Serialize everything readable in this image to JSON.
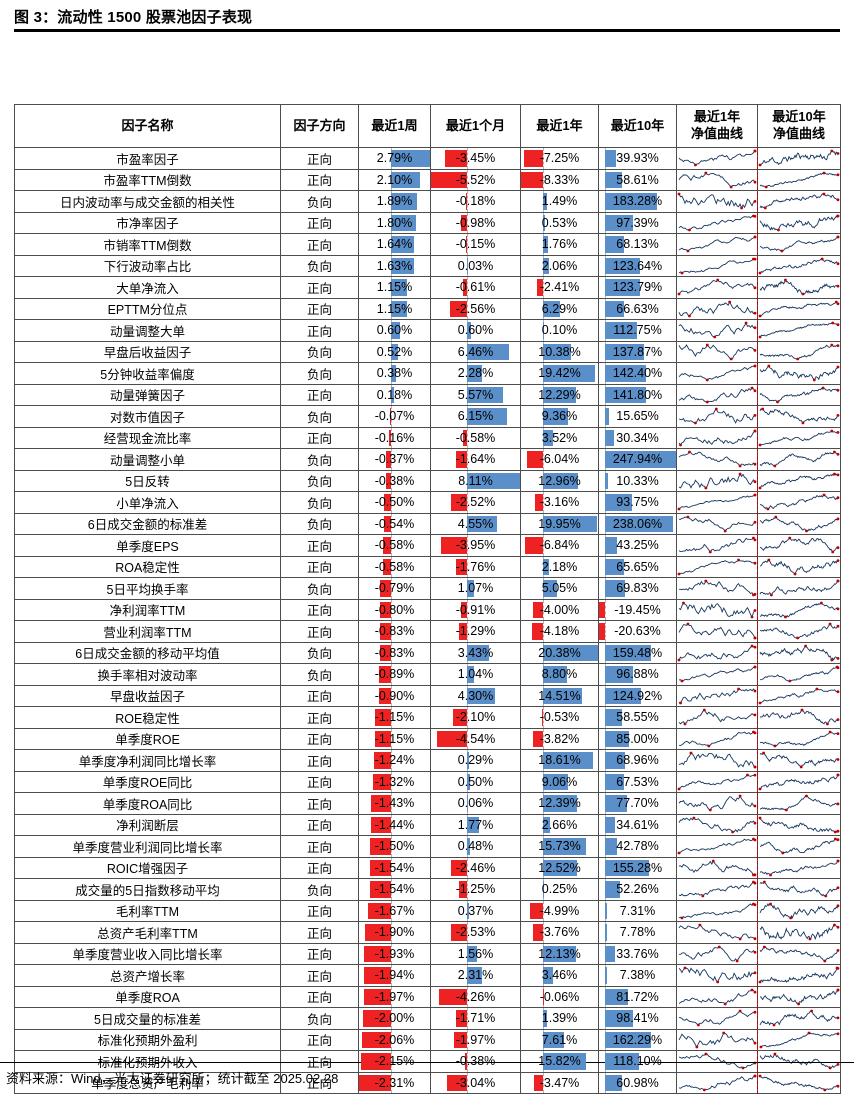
{
  "title": "图 3：流动性 1500 股票池因子表现",
  "source_note": "资料来源：Wind，光大证券研究所；统计截至 2025.02.28",
  "colors": {
    "positive_bar": "#5b8fc9",
    "negative_bar": "#ee2222",
    "sparkline": "#17375e",
    "marker": "#c00000",
    "divider": "#c00000",
    "axis_dash": "#b3b3b3"
  },
  "chart_data": {
    "type": "table",
    "columns": [
      "因子名称",
      "因子方向",
      "最近1周",
      "最近1个月",
      "最近1年",
      "最近10年",
      "最近1年\n净值曲线",
      "最近10年\n净值曲线"
    ],
    "percent_columns": [
      2,
      3,
      4,
      5
    ],
    "sparkline_columns": [
      "最近1年净值曲线",
      "最近10年净值曲线"
    ],
    "rows": [
      [
        "市盈率因子",
        "正向",
        2.79,
        -3.45,
        -7.25,
        39.93
      ],
      [
        "市盈率TTM倒数",
        "正向",
        2.1,
        -5.52,
        -8.33,
        58.61
      ],
      [
        "日内波动率与成交金额的相关性",
        "负向",
        1.89,
        -0.18,
        1.49,
        183.28
      ],
      [
        "市净率因子",
        "正向",
        1.8,
        -0.98,
        0.53,
        97.39
      ],
      [
        "市销率TTM倒数",
        "正向",
        1.64,
        -0.15,
        1.76,
        68.13
      ],
      [
        "下行波动率占比",
        "负向",
        1.63,
        0.03,
        2.06,
        123.64
      ],
      [
        "大单净流入",
        "正向",
        1.15,
        -0.61,
        -2.41,
        123.79
      ],
      [
        "EPTTM分位点",
        "正向",
        1.15,
        -2.56,
        6.29,
        66.63
      ],
      [
        "动量调整大单",
        "正向",
        0.6,
        0.6,
        0.1,
        112.75
      ],
      [
        "早盘后收益因子",
        "负向",
        0.52,
        6.46,
        10.38,
        137.87
      ],
      [
        "5分钟收益率偏度",
        "负向",
        0.38,
        2.28,
        19.42,
        142.4
      ],
      [
        "动量弹簧因子",
        "正向",
        0.18,
        5.57,
        12.29,
        141.8
      ],
      [
        "对数市值因子",
        "负向",
        -0.07,
        6.15,
        9.36,
        15.65
      ],
      [
        "经营现金流比率",
        "正向",
        -0.16,
        -0.58,
        3.52,
        30.34
      ],
      [
        "动量调整小单",
        "负向",
        -0.37,
        -1.64,
        -6.04,
        247.94
      ],
      [
        "5日反转",
        "负向",
        -0.38,
        8.11,
        12.96,
        10.33
      ],
      [
        "小单净流入",
        "负向",
        -0.5,
        -2.52,
        -3.16,
        93.75
      ],
      [
        "6日成交金额的标准差",
        "负向",
        -0.54,
        4.55,
        19.95,
        238.06
      ],
      [
        "单季度EPS",
        "正向",
        -0.58,
        -3.95,
        -6.84,
        43.25
      ],
      [
        "ROA稳定性",
        "正向",
        -0.58,
        -1.76,
        2.18,
        65.65
      ],
      [
        "5日平均换手率",
        "负向",
        -0.79,
        1.07,
        5.05,
        69.83
      ],
      [
        "净利润率TTM",
        "正向",
        -0.8,
        -0.91,
        -4.0,
        -19.45
      ],
      [
        "营业利润率TTM",
        "正向",
        -0.83,
        -1.29,
        -4.18,
        -20.63
      ],
      [
        "6日成交金额的移动平均值",
        "负向",
        -0.83,
        3.43,
        20.38,
        159.48
      ],
      [
        "换手率相对波动率",
        "负向",
        -0.89,
        1.04,
        8.8,
        96.88
      ],
      [
        "早盘收益因子",
        "正向",
        -0.9,
        4.3,
        14.51,
        124.92
      ],
      [
        "ROE稳定性",
        "正向",
        -1.15,
        -2.1,
        -0.53,
        58.55
      ],
      [
        "单季度ROE",
        "正向",
        -1.15,
        -4.54,
        -3.82,
        85.0
      ],
      [
        "单季度净利润同比增长率",
        "正向",
        -1.24,
        0.29,
        18.61,
        68.96
      ],
      [
        "单季度ROE同比",
        "正向",
        -1.32,
        0.5,
        9.06,
        67.53
      ],
      [
        "单季度ROA同比",
        "正向",
        -1.43,
        0.06,
        12.39,
        77.7
      ],
      [
        "净利润断层",
        "正向",
        -1.44,
        1.77,
        2.66,
        34.61
      ],
      [
        "单季度营业利润同比增长率",
        "正向",
        -1.5,
        0.48,
        15.73,
        42.78
      ],
      [
        "ROIC增强因子",
        "正向",
        -1.54,
        -2.46,
        12.52,
        155.28
      ],
      [
        "成交量的5日指数移动平均",
        "负向",
        -1.54,
        -1.25,
        0.25,
        52.26
      ],
      [
        "毛利率TTM",
        "正向",
        -1.67,
        0.37,
        -4.99,
        7.31
      ],
      [
        "总资产毛利率TTM",
        "正向",
        -1.9,
        -2.53,
        -3.76,
        7.78
      ],
      [
        "单季度营业收入同比增长率",
        "正向",
        -1.93,
        1.56,
        12.13,
        33.76
      ],
      [
        "总资产增长率",
        "正向",
        -1.94,
        2.31,
        3.46,
        7.38
      ],
      [
        "单季度ROA",
        "正向",
        -1.97,
        -4.26,
        -0.06,
        81.72
      ],
      [
        "5日成交量的标准差",
        "负向",
        -2.0,
        -1.71,
        1.39,
        98.41
      ],
      [
        "标准化预期外盈利",
        "正向",
        -2.06,
        -1.97,
        7.61,
        162.29
      ],
      [
        "标准化预期外收入",
        "正向",
        -2.15,
        -0.38,
        15.82,
        118.1
      ],
      [
        "单季度总资产毛利率",
        "正向",
        -2.31,
        -3.04,
        -3.47,
        60.98
      ]
    ]
  }
}
